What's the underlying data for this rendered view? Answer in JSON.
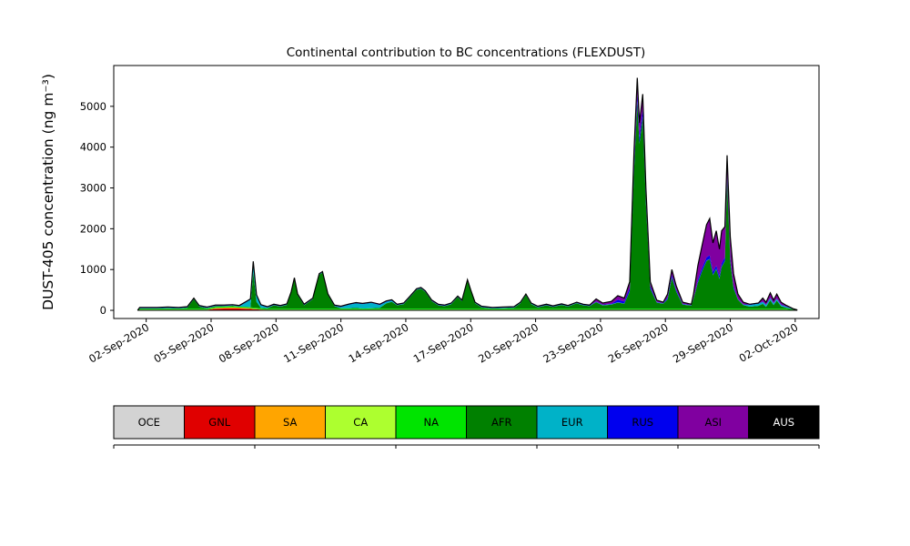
{
  "figure": {
    "background": "#ffffff"
  },
  "chart_data": {
    "type": "area",
    "stacked": true,
    "title": "Continental contribution to BC concentrations (FLEXDUST)",
    "ylabel": "DUST-405 concentration (ng m⁻³)",
    "xlabel": "",
    "grid": false,
    "legend_position": "bottom",
    "ylim": [
      -200,
      6000
    ],
    "yticks": [
      0,
      1000,
      2000,
      3000,
      4000,
      5000
    ],
    "x_domain_days": [
      -1.5,
      31.1
    ],
    "xticks": {
      "positions": [
        0,
        3,
        6,
        9,
        12,
        15,
        18,
        21,
        24,
        27,
        30
      ],
      "labels": [
        "02-Sep-2020",
        "05-Sep-2020",
        "08-Sep-2020",
        "11-Sep-2020",
        "14-Sep-2020",
        "17-Sep-2020",
        "20-Sep-2020",
        "23-Sep-2020",
        "26-Sep-2020",
        "29-Sep-2020",
        "02-Oct-2020"
      ]
    },
    "total_line_color": "#000000",
    "series": [
      {
        "name": "OCE",
        "color": "#d3d3d3"
      },
      {
        "name": "GNL",
        "color": "#e00000"
      },
      {
        "name": "SA",
        "color": "#ffa500"
      },
      {
        "name": "CA",
        "color": "#adff2f"
      },
      {
        "name": "NA",
        "color": "#00e400"
      },
      {
        "name": "AFR",
        "color": "#008000"
      },
      {
        "name": "EUR",
        "color": "#00b2c8"
      },
      {
        "name": "RUS",
        "color": "#0000ee"
      },
      {
        "name": "ASI",
        "color": "#8000a0"
      },
      {
        "name": "AUS",
        "color": "#000000"
      }
    ],
    "rows_format": [
      "day_from_02Sep",
      "OCE",
      "GNL",
      "SA",
      "CA",
      "NA",
      "AFR",
      "EUR",
      "RUS",
      "ASI",
      "AUS"
    ],
    "rows": [
      [
        -0.4,
        0,
        0,
        0,
        0,
        0,
        0,
        0,
        0,
        0,
        0
      ],
      [
        -0.3,
        10,
        2,
        2,
        3,
        25,
        0,
        8,
        10,
        8,
        1
      ],
      [
        0,
        10,
        2,
        2,
        3,
        25,
        1,
        8,
        10,
        8,
        1
      ],
      [
        0.5,
        10,
        2,
        2,
        3,
        25,
        0,
        8,
        10,
        8,
        1
      ],
      [
        1,
        10,
        2,
        2,
        3,
        25,
        11,
        8,
        10,
        8,
        1
      ],
      [
        1.5,
        10,
        2,
        2,
        3,
        25,
        1,
        8,
        10,
        8,
        1
      ],
      [
        1.9,
        10,
        2,
        2,
        3,
        25,
        21,
        8,
        10,
        8,
        1
      ],
      [
        2.2,
        10,
        2,
        2,
        3,
        25,
        231,
        8,
        10,
        8,
        1
      ],
      [
        2.45,
        10,
        2,
        2,
        3,
        25,
        51,
        8,
        10,
        8,
        1
      ],
      [
        2.8,
        10,
        2,
        2,
        3,
        25,
        11,
        8,
        10,
        8,
        1
      ],
      [
        3.2,
        10,
        30,
        15,
        3,
        25,
        20,
        8,
        10,
        8,
        1
      ],
      [
        3.6,
        10,
        35,
        20,
        3,
        25,
        10,
        8,
        10,
        8,
        1
      ],
      [
        4,
        10,
        40,
        22,
        3,
        25,
        13,
        8,
        10,
        8,
        1
      ],
      [
        4.3,
        10,
        35,
        20,
        3,
        25,
        0,
        8,
        10,
        8,
        1
      ],
      [
        4.6,
        10,
        30,
        15,
        3,
        25,
        8,
        100,
        10,
        8,
        1
      ],
      [
        4.82,
        10,
        25,
        12,
        3,
        25,
        6,
        180,
        10,
        8,
        1
      ],
      [
        4.95,
        10,
        20,
        10,
        3,
        25,
        863,
        250,
        10,
        8,
        1
      ],
      [
        5.1,
        10,
        15,
        8,
        3,
        25,
        150,
        150,
        10,
        8,
        1
      ],
      [
        5.3,
        10,
        8,
        5,
        3,
        25,
        10,
        60,
        10,
        8,
        1
      ],
      [
        5.6,
        10,
        4,
        2,
        3,
        25,
        7,
        20,
        10,
        8,
        1
      ],
      [
        5.9,
        10,
        2,
        2,
        3,
        25,
        81,
        8,
        10,
        8,
        1
      ],
      [
        6.2,
        10,
        2,
        2,
        3,
        25,
        51,
        8,
        10,
        8,
        1
      ],
      [
        6.5,
        10,
        2,
        2,
        3,
        25,
        91,
        8,
        10,
        8,
        1
      ],
      [
        6.7,
        10,
        2,
        2,
        3,
        25,
        381,
        8,
        10,
        8,
        1
      ],
      [
        6.85,
        10,
        2,
        2,
        3,
        25,
        731,
        8,
        10,
        8,
        1
      ],
      [
        7,
        10,
        2,
        2,
        3,
        25,
        331,
        8,
        10,
        8,
        1
      ],
      [
        7.3,
        10,
        2,
        2,
        3,
        25,
        81,
        8,
        10,
        8,
        1
      ],
      [
        7.7,
        10,
        2,
        2,
        3,
        25,
        231,
        8,
        10,
        8,
        1
      ],
      [
        8,
        10,
        2,
        2,
        3,
        25,
        831,
        8,
        10,
        8,
        1
      ],
      [
        8.15,
        10,
        2,
        2,
        3,
        25,
        881,
        8,
        10,
        8,
        1
      ],
      [
        8.4,
        10,
        2,
        2,
        3,
        25,
        331,
        8,
        10,
        8,
        1
      ],
      [
        8.7,
        10,
        2,
        2,
        3,
        25,
        61,
        8,
        10,
        8,
        1
      ],
      [
        9,
        10,
        2,
        2,
        3,
        25,
        9,
        30,
        10,
        8,
        1
      ],
      [
        9.4,
        10,
        2,
        2,
        3,
        25,
        9,
        90,
        10,
        8,
        1
      ],
      [
        9.7,
        10,
        2,
        2,
        3,
        25,
        19,
        110,
        10,
        8,
        1
      ],
      [
        10,
        10,
        2,
        2,
        3,
        25,
        0,
        110,
        10,
        8,
        1
      ],
      [
        10.4,
        10,
        2,
        2,
        3,
        25,
        9,
        130,
        10,
        8,
        1
      ],
      [
        10.8,
        10,
        2,
        2,
        3,
        25,
        19,
        70,
        10,
        8,
        1
      ],
      [
        11.1,
        10,
        2,
        2,
        3,
        25,
        129,
        40,
        10,
        8,
        1
      ],
      [
        11.35,
        10,
        2,
        2,
        3,
        25,
        169,
        30,
        10,
        8,
        1
      ],
      [
        11.6,
        10,
        2,
        2,
        3,
        25,
        81,
        8,
        10,
        8,
        1
      ],
      [
        11.9,
        10,
        2,
        2,
        3,
        25,
        111,
        8,
        10,
        8,
        1
      ],
      [
        12.2,
        10,
        2,
        2,
        3,
        25,
        281,
        8,
        10,
        8,
        1
      ],
      [
        12.5,
        10,
        2,
        2,
        3,
        25,
        461,
        8,
        10,
        8,
        1
      ],
      [
        12.7,
        10,
        2,
        2,
        3,
        25,
        491,
        8,
        10,
        8,
        1
      ],
      [
        12.9,
        10,
        2,
        2,
        3,
        25,
        411,
        8,
        10,
        8,
        1
      ],
      [
        13.2,
        10,
        2,
        2,
        3,
        25,
        181,
        8,
        10,
        8,
        1
      ],
      [
        13.5,
        10,
        2,
        2,
        3,
        25,
        81,
        8,
        10,
        8,
        1
      ],
      [
        13.8,
        10,
        2,
        2,
        3,
        25,
        61,
        8,
        10,
        8,
        1
      ],
      [
        14.1,
        10,
        2,
        2,
        3,
        25,
        111,
        8,
        10,
        8,
        1
      ],
      [
        14.4,
        10,
        2,
        2,
        3,
        25,
        281,
        8,
        10,
        8,
        1
      ],
      [
        14.6,
        10,
        2,
        2,
        3,
        25,
        181,
        8,
        10,
        8,
        1
      ],
      [
        14.85,
        10,
        2,
        2,
        3,
        25,
        681,
        8,
        10,
        8,
        1
      ],
      [
        15,
        10,
        2,
        2,
        3,
        25,
        431,
        8,
        10,
        8,
        1
      ],
      [
        15.2,
        10,
        2,
        2,
        3,
        25,
        131,
        8,
        10,
        8,
        1
      ],
      [
        15.5,
        10,
        2,
        2,
        3,
        25,
        31,
        8,
        10,
        8,
        1
      ],
      [
        16,
        10,
        2,
        2,
        3,
        25,
        1,
        8,
        10,
        8,
        1
      ],
      [
        16.5,
        10,
        2,
        2,
        3,
        25,
        11,
        8,
        10,
        8,
        1
      ],
      [
        17,
        10,
        2,
        2,
        3,
        25,
        21,
        8,
        10,
        8,
        1
      ],
      [
        17.3,
        10,
        2,
        2,
        3,
        25,
        131,
        8,
        10,
        8,
        1
      ],
      [
        17.55,
        10,
        2,
        2,
        3,
        25,
        331,
        8,
        10,
        8,
        1
      ],
      [
        17.8,
        10,
        2,
        2,
        3,
        25,
        111,
        8,
        10,
        8,
        1
      ],
      [
        18.1,
        10,
        2,
        2,
        3,
        25,
        31,
        8,
        10,
        8,
        1
      ],
      [
        18.5,
        10,
        2,
        2,
        3,
        25,
        81,
        8,
        10,
        8,
        1
      ],
      [
        18.8,
        10,
        2,
        2,
        3,
        25,
        41,
        8,
        10,
        8,
        1
      ],
      [
        19.2,
        10,
        2,
        2,
        3,
        25,
        91,
        8,
        10,
        8,
        1
      ],
      [
        19.5,
        10,
        2,
        2,
        3,
        25,
        51,
        8,
        10,
        8,
        1
      ],
      [
        19.9,
        10,
        2,
        2,
        3,
        25,
        131,
        8,
        10,
        8,
        1
      ],
      [
        20.2,
        10,
        2,
        2,
        3,
        25,
        81,
        8,
        10,
        8,
        1
      ],
      [
        20.5,
        10,
        2,
        2,
        3,
        25,
        61,
        8,
        10,
        8,
        1
      ],
      [
        20.8,
        10,
        2,
        2,
        3,
        25,
        159,
        8,
        10,
        60,
        1
      ],
      [
        21.1,
        10,
        2,
        2,
        3,
        25,
        79,
        8,
        10,
        40,
        1
      ],
      [
        21.5,
        10,
        2,
        2,
        3,
        25,
        99,
        8,
        10,
        60,
        1
      ],
      [
        21.8,
        10,
        2,
        2,
        3,
        25,
        149,
        8,
        60,
        100,
        1
      ],
      [
        22.1,
        10,
        2,
        2,
        3,
        25,
        119,
        8,
        50,
        80,
        1
      ],
      [
        22.35,
        10,
        2,
        2,
        3,
        25,
        419,
        8,
        80,
        150,
        1
      ],
      [
        22.55,
        10,
        2,
        2,
        3,
        25,
        3349,
        8,
        150,
        350,
        1
      ],
      [
        22.7,
        10,
        2,
        2,
        3,
        25,
        5069,
        8,
        180,
        400,
        1
      ],
      [
        22.8,
        10,
        2,
        2,
        3,
        25,
        4039,
        8,
        160,
        350,
        1
      ],
      [
        22.95,
        10,
        2,
        2,
        3,
        25,
        4699,
        8,
        170,
        380,
        1
      ],
      [
        23.1,
        10,
        2,
        2,
        3,
        25,
        2579,
        8,
        120,
        250,
        1
      ],
      [
        23.3,
        10,
        2,
        2,
        3,
        25,
        489,
        8,
        60,
        100,
        1
      ],
      [
        23.6,
        10,
        2,
        2,
        3,
        25,
        149,
        8,
        10,
        40,
        1
      ],
      [
        23.9,
        10,
        2,
        2,
        3,
        25,
        119,
        8,
        10,
        20,
        1
      ],
      [
        24.1,
        10,
        2,
        2,
        3,
        25,
        229,
        8,
        40,
        80,
        1
      ],
      [
        24.3,
        10,
        2,
        2,
        3,
        25,
        759,
        8,
        60,
        130,
        1
      ],
      [
        24.5,
        10,
        2,
        2,
        3,
        25,
        419,
        8,
        40,
        90,
        1
      ],
      [
        24.8,
        10,
        2,
        2,
        3,
        25,
        99,
        8,
        10,
        40,
        1
      ],
      [
        25.2,
        10,
        2,
        2,
        3,
        25,
        74,
        8,
        10,
        15,
        1
      ],
      [
        25.3,
        10,
        2,
        2,
        3,
        25,
        239,
        8,
        10,
        100,
        1
      ],
      [
        25.5,
        10,
        2,
        2,
        3,
        25,
        639,
        8,
        60,
        350,
        1
      ],
      [
        25.7,
        10,
        2,
        2,
        3,
        25,
        919,
        8,
        80,
        550,
        1
      ],
      [
        25.9,
        10,
        2,
        2,
        3,
        25,
        1169,
        8,
        80,
        800,
        1
      ],
      [
        26.05,
        10,
        2,
        2,
        3,
        25,
        1209,
        8,
        90,
        900,
        1
      ],
      [
        26.2,
        10,
        2,
        2,
        3,
        25,
        819,
        8,
        80,
        700,
        1
      ],
      [
        26.35,
        10,
        2,
        2,
        3,
        25,
        969,
        8,
        80,
        850,
        1
      ],
      [
        26.5,
        10,
        2,
        2,
        3,
        25,
        729,
        8,
        70,
        650,
        1
      ],
      [
        26.6,
        10,
        2,
        2,
        3,
        25,
        1019,
        8,
        80,
        800,
        1
      ],
      [
        26.75,
        10,
        2,
        2,
        3,
        25,
        1169,
        8,
        80,
        750,
        1
      ],
      [
        26.85,
        10,
        2,
        2,
        3,
        25,
        3179,
        8,
        120,
        450,
        1
      ],
      [
        27,
        10,
        2,
        2,
        3,
        25,
        1169,
        8,
        80,
        500,
        1
      ],
      [
        27.15,
        10,
        2,
        2,
        3,
        25,
        499,
        8,
        50,
        300,
        1
      ],
      [
        27.35,
        10,
        2,
        2,
        3,
        25,
        219,
        8,
        10,
        120,
        1
      ],
      [
        27.6,
        10,
        2,
        2,
        3,
        25,
        89,
        8,
        10,
        50,
        1
      ],
      [
        27.9,
        10,
        2,
        2,
        3,
        25,
        49,
        40,
        10,
        8,
        1
      ],
      [
        28.3,
        10,
        2,
        2,
        3,
        25,
        69,
        50,
        10,
        8,
        1
      ],
      [
        28.5,
        10,
        2,
        2,
        3,
        25,
        117,
        50,
        10,
        80,
        1
      ],
      [
        28.65,
        10,
        2,
        2,
        3,
        25,
        42,
        45,
        10,
        60,
        1
      ],
      [
        28.85,
        10,
        2,
        2,
        3,
        25,
        207,
        50,
        10,
        120,
        1
      ],
      [
        29,
        10,
        2,
        2,
        3,
        25,
        87,
        40,
        10,
        70,
        1
      ],
      [
        29.15,
        10,
        2,
        2,
        3,
        25,
        197,
        40,
        10,
        110,
        1
      ],
      [
        29.35,
        10,
        2,
        2,
        3,
        25,
        57,
        30,
        10,
        60,
        1
      ],
      [
        29.6,
        10,
        2,
        2,
        3,
        25,
        22,
        20,
        10,
        25,
        1
      ],
      [
        29.9,
        5,
        0,
        0,
        1,
        8,
        15,
        8,
        2,
        1,
        0
      ],
      [
        30.1,
        2,
        0,
        0,
        0,
        3,
        5,
        0,
        0,
        0,
        0
      ]
    ]
  },
  "legend": {
    "items": [
      {
        "label": "OCE",
        "color": "#d3d3d3",
        "text_color": "#000000"
      },
      {
        "label": "GNL",
        "color": "#e00000",
        "text_color": "#000000"
      },
      {
        "label": "SA",
        "color": "#ffa500",
        "text_color": "#000000"
      },
      {
        "label": "CA",
        "color": "#adff2f",
        "text_color": "#000000"
      },
      {
        "label": "NA",
        "color": "#00e400",
        "text_color": "#000000"
      },
      {
        "label": "AFR",
        "color": "#008000",
        "text_color": "#000000"
      },
      {
        "label": "EUR",
        "color": "#00b2c8",
        "text_color": "#000000"
      },
      {
        "label": "RUS",
        "color": "#0000ee",
        "text_color": "#000000"
      },
      {
        "label": "ASI",
        "color": "#8000a0",
        "text_color": "#000000"
      },
      {
        "label": "AUS",
        "color": "#000000",
        "text_color": "#ffffff"
      }
    ]
  }
}
